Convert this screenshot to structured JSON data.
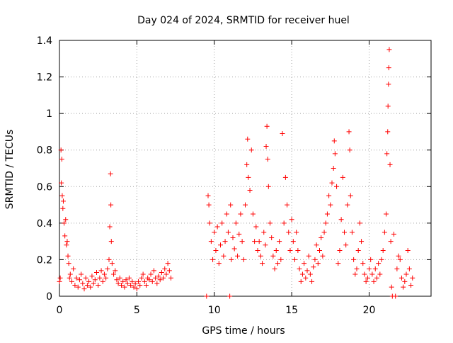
{
  "chart_data": {
    "type": "scatter",
    "title": "Day 024 of 2024, SRMTID for receiver huel",
    "xlabel": "GPS time / hours",
    "ylabel": "SRMTID / TECUs",
    "xlim": [
      0,
      24
    ],
    "ylim": [
      0,
      1.4
    ],
    "x_ticks": [
      0,
      5,
      10,
      15,
      20
    ],
    "x_tick_labels": [
      "0",
      "5",
      "10",
      "15",
      "20"
    ],
    "y_ticks": [
      0,
      0.2,
      0.4,
      0.6,
      0.8,
      1.0,
      1.2,
      1.4
    ],
    "y_tick_labels": [
      "0",
      "0.2",
      "0.4",
      "0.6",
      "0.8",
      "1",
      "1.2",
      "1.4"
    ],
    "grid": true,
    "marker": "+",
    "marker_color": "#ff0000",
    "series": [
      {
        "name": "SRMTID",
        "points": [
          [
            0.0,
            0.08
          ],
          [
            0.05,
            0.1
          ],
          [
            0.1,
            0.8
          ],
          [
            0.12,
            0.62
          ],
          [
            0.15,
            0.75
          ],
          [
            0.18,
            0.55
          ],
          [
            0.22,
            0.48
          ],
          [
            0.25,
            0.52
          ],
          [
            0.3,
            0.4
          ],
          [
            0.35,
            0.33
          ],
          [
            0.4,
            0.42
          ],
          [
            0.45,
            0.28
          ],
          [
            0.5,
            0.3
          ],
          [
            0.55,
            0.22
          ],
          [
            0.6,
            0.18
          ],
          [
            0.65,
            0.1
          ],
          [
            0.7,
            0.12
          ],
          [
            0.8,
            0.08
          ],
          [
            0.9,
            0.15
          ],
          [
            1.0,
            0.06
          ],
          [
            1.1,
            0.1
          ],
          [
            1.2,
            0.05
          ],
          [
            1.3,
            0.09
          ],
          [
            1.4,
            0.12
          ],
          [
            1.5,
            0.07
          ],
          [
            1.6,
            0.04
          ],
          [
            1.7,
            0.1
          ],
          [
            1.8,
            0.06
          ],
          [
            1.9,
            0.08
          ],
          [
            2.0,
            0.05
          ],
          [
            2.1,
            0.11
          ],
          [
            2.2,
            0.07
          ],
          [
            2.3,
            0.09
          ],
          [
            2.4,
            0.13
          ],
          [
            2.5,
            0.06
          ],
          [
            2.6,
            0.1
          ],
          [
            2.7,
            0.14
          ],
          [
            2.8,
            0.08
          ],
          [
            2.9,
            0.12
          ],
          [
            3.0,
            0.1
          ],
          [
            3.1,
            0.15
          ],
          [
            3.2,
            0.2
          ],
          [
            3.25,
            0.38
          ],
          [
            3.3,
            0.67
          ],
          [
            3.32,
            0.5
          ],
          [
            3.35,
            0.3
          ],
          [
            3.4,
            0.18
          ],
          [
            3.5,
            0.12
          ],
          [
            3.6,
            0.14
          ],
          [
            3.7,
            0.09
          ],
          [
            3.8,
            0.07
          ],
          [
            3.9,
            0.1
          ],
          [
            4.0,
            0.06
          ],
          [
            4.1,
            0.08
          ],
          [
            4.2,
            0.05
          ],
          [
            4.3,
            0.09
          ],
          [
            4.4,
            0.07
          ],
          [
            4.5,
            0.1
          ],
          [
            4.6,
            0.06
          ],
          [
            4.7,
            0.08
          ],
          [
            4.8,
            0.05
          ],
          [
            4.9,
            0.07
          ],
          [
            5.0,
            0.04
          ],
          [
            5.1,
            0.08
          ],
          [
            5.2,
            0.06
          ],
          [
            5.3,
            0.1
          ],
          [
            5.4,
            0.12
          ],
          [
            5.5,
            0.08
          ],
          [
            5.6,
            0.06
          ],
          [
            5.7,
            0.1
          ],
          [
            5.8,
            0.09
          ],
          [
            5.9,
            0.12
          ],
          [
            6.0,
            0.08
          ],
          [
            6.1,
            0.14
          ],
          [
            6.2,
            0.1
          ],
          [
            6.3,
            0.07
          ],
          [
            6.4,
            0.11
          ],
          [
            6.5,
            0.09
          ],
          [
            6.6,
            0.13
          ],
          [
            6.7,
            0.1
          ],
          [
            6.8,
            0.15
          ],
          [
            6.9,
            0.12
          ],
          [
            7.0,
            0.18
          ],
          [
            7.1,
            0.14
          ],
          [
            7.2,
            0.1
          ],
          [
            9.5,
            0.0
          ],
          [
            9.6,
            0.55
          ],
          [
            9.65,
            0.5
          ],
          [
            9.7,
            0.4
          ],
          [
            9.8,
            0.3
          ],
          [
            9.9,
            0.2
          ],
          [
            10.0,
            0.35
          ],
          [
            10.1,
            0.25
          ],
          [
            10.2,
            0.38
          ],
          [
            10.3,
            0.18
          ],
          [
            10.4,
            0.28
          ],
          [
            10.5,
            0.4
          ],
          [
            10.6,
            0.22
          ],
          [
            10.7,
            0.3
          ],
          [
            10.8,
            0.45
          ],
          [
            10.9,
            0.35
          ],
          [
            11.0,
            0.0
          ],
          [
            11.05,
            0.5
          ],
          [
            11.1,
            0.2
          ],
          [
            11.2,
            0.32
          ],
          [
            11.3,
            0.26
          ],
          [
            11.4,
            0.4
          ],
          [
            11.5,
            0.22
          ],
          [
            11.6,
            0.34
          ],
          [
            11.7,
            0.45
          ],
          [
            11.8,
            0.3
          ],
          [
            11.9,
            0.2
          ],
          [
            12.0,
            0.5
          ],
          [
            12.1,
            0.72
          ],
          [
            12.15,
            0.86
          ],
          [
            12.2,
            0.65
          ],
          [
            12.3,
            0.58
          ],
          [
            12.4,
            0.8
          ],
          [
            12.5,
            0.45
          ],
          [
            12.6,
            0.3
          ],
          [
            12.7,
            0.38
          ],
          [
            12.8,
            0.25
          ],
          [
            12.9,
            0.3
          ],
          [
            13.0,
            0.22
          ],
          [
            13.1,
            0.18
          ],
          [
            13.2,
            0.35
          ],
          [
            13.3,
            0.28
          ],
          [
            13.35,
            0.82
          ],
          [
            13.4,
            0.93
          ],
          [
            13.45,
            0.75
          ],
          [
            13.5,
            0.6
          ],
          [
            13.6,
            0.4
          ],
          [
            13.7,
            0.32
          ],
          [
            13.8,
            0.22
          ],
          [
            13.9,
            0.15
          ],
          [
            14.0,
            0.25
          ],
          [
            14.1,
            0.18
          ],
          [
            14.2,
            0.3
          ],
          [
            14.3,
            0.2
          ],
          [
            14.4,
            0.89
          ],
          [
            14.5,
            0.4
          ],
          [
            14.6,
            0.65
          ],
          [
            14.7,
            0.5
          ],
          [
            14.8,
            0.35
          ],
          [
            14.9,
            0.25
          ],
          [
            15.0,
            0.42
          ],
          [
            15.1,
            0.3
          ],
          [
            15.2,
            0.2
          ],
          [
            15.3,
            0.35
          ],
          [
            15.4,
            0.25
          ],
          [
            15.5,
            0.15
          ],
          [
            15.6,
            0.08
          ],
          [
            15.7,
            0.12
          ],
          [
            15.8,
            0.18
          ],
          [
            15.9,
            0.1
          ],
          [
            16.0,
            0.14
          ],
          [
            16.1,
            0.22
          ],
          [
            16.2,
            0.12
          ],
          [
            16.3,
            0.08
          ],
          [
            16.4,
            0.16
          ],
          [
            16.5,
            0.2
          ],
          [
            16.6,
            0.28
          ],
          [
            16.7,
            0.18
          ],
          [
            16.8,
            0.25
          ],
          [
            16.9,
            0.32
          ],
          [
            17.0,
            0.22
          ],
          [
            17.1,
            0.35
          ],
          [
            17.2,
            0.4
          ],
          [
            17.3,
            0.45
          ],
          [
            17.4,
            0.55
          ],
          [
            17.5,
            0.5
          ],
          [
            17.6,
            0.62
          ],
          [
            17.7,
            0.7
          ],
          [
            17.75,
            0.85
          ],
          [
            17.8,
            0.78
          ],
          [
            17.9,
            0.6
          ],
          [
            18.0,
            0.18
          ],
          [
            18.1,
            0.25
          ],
          [
            18.2,
            0.42
          ],
          [
            18.3,
            0.65
          ],
          [
            18.4,
            0.35
          ],
          [
            18.5,
            0.28
          ],
          [
            18.6,
            0.5
          ],
          [
            18.7,
            0.9
          ],
          [
            18.75,
            0.8
          ],
          [
            18.8,
            0.55
          ],
          [
            18.9,
            0.35
          ],
          [
            19.0,
            0.2
          ],
          [
            19.1,
            0.12
          ],
          [
            19.2,
            0.15
          ],
          [
            19.3,
            0.25
          ],
          [
            19.4,
            0.4
          ],
          [
            19.5,
            0.3
          ],
          [
            19.6,
            0.18
          ],
          [
            19.7,
            0.12
          ],
          [
            19.8,
            0.08
          ],
          [
            19.9,
            0.1
          ],
          [
            20.0,
            0.15
          ],
          [
            20.1,
            0.2
          ],
          [
            20.2,
            0.12
          ],
          [
            20.3,
            0.08
          ],
          [
            20.4,
            0.15
          ],
          [
            20.5,
            0.1
          ],
          [
            20.6,
            0.18
          ],
          [
            20.7,
            0.12
          ],
          [
            20.8,
            0.2
          ],
          [
            20.9,
            0.25
          ],
          [
            21.0,
            0.35
          ],
          [
            21.1,
            0.45
          ],
          [
            21.15,
            0.78
          ],
          [
            21.2,
            0.9
          ],
          [
            21.22,
            1.04
          ],
          [
            21.25,
            1.16
          ],
          [
            21.27,
            1.25
          ],
          [
            21.3,
            1.35
          ],
          [
            21.35,
            0.72
          ],
          [
            21.4,
            0.3
          ],
          [
            21.45,
            0.05
          ],
          [
            21.5,
            0.0
          ],
          [
            21.6,
            0.34
          ],
          [
            21.7,
            0.0
          ],
          [
            21.8,
            0.15
          ],
          [
            21.9,
            0.22
          ],
          [
            22.0,
            0.2
          ],
          [
            22.1,
            0.1
          ],
          [
            22.2,
            0.05
          ],
          [
            22.3,
            0.08
          ],
          [
            22.4,
            0.12
          ],
          [
            22.5,
            0.25
          ],
          [
            22.6,
            0.15
          ],
          [
            22.7,
            0.06
          ],
          [
            22.8,
            0.1
          ]
        ]
      }
    ]
  }
}
